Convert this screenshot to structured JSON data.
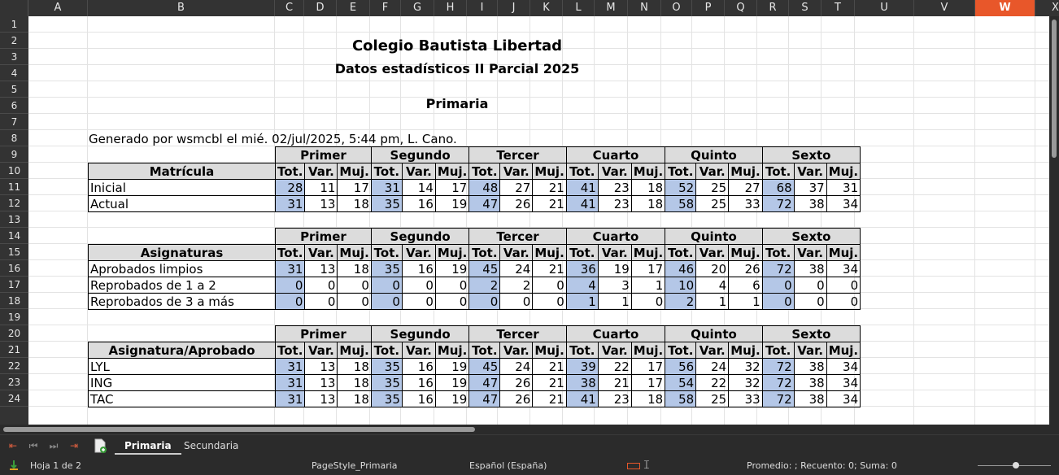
{
  "columns": [
    "A",
    "B",
    "C",
    "D",
    "E",
    "F",
    "G",
    "H",
    "I",
    "J",
    "K",
    "L",
    "M",
    "N",
    "O",
    "P",
    "Q",
    "R",
    "S",
    "T",
    "U",
    "V",
    "W",
    "X"
  ],
  "selected_column": "W",
  "rows": [
    "1",
    "2",
    "3",
    "4",
    "5",
    "6",
    "7",
    "8",
    "9",
    "10",
    "11",
    "12",
    "13",
    "14",
    "15",
    "16",
    "17",
    "18",
    "19",
    "20",
    "21",
    "22",
    "23",
    "24"
  ],
  "sheet": {
    "title": "Colegio Bautista Libertad",
    "subtitle": "Datos estadísticos II Parcial 2025",
    "section": "Primaria",
    "generated": "Generado por wsmcbl el mié. 02/jul/2025, 5:44 pm, L. Cano.",
    "grades": [
      "Primer",
      "Segundo",
      "Tercer",
      "Cuarto",
      "Quinto",
      "Sexto"
    ],
    "sub_headers": [
      "Tot.",
      "Var.",
      "Muj."
    ],
    "blocks": [
      {
        "label": "Matrícula",
        "rows": [
          {
            "name": "Inicial",
            "values": [
              "28",
              "11",
              "17",
              "31",
              "14",
              "17",
              "48",
              "27",
              "21",
              "41",
              "23",
              "18",
              "52",
              "25",
              "27",
              "68",
              "37",
              "31"
            ]
          },
          {
            "name": "Actual",
            "values": [
              "31",
              "13",
              "18",
              "35",
              "16",
              "19",
              "47",
              "26",
              "21",
              "41",
              "23",
              "18",
              "58",
              "25",
              "33",
              "72",
              "38",
              "34"
            ]
          }
        ]
      },
      {
        "label": "Asignaturas",
        "rows": [
          {
            "name": "Aprobados limpios",
            "values": [
              "31",
              "13",
              "18",
              "35",
              "16",
              "19",
              "45",
              "24",
              "21",
              "36",
              "19",
              "17",
              "46",
              "20",
              "26",
              "72",
              "38",
              "34"
            ]
          },
          {
            "name": "Reprobados de 1 a 2",
            "values": [
              "0",
              "0",
              "0",
              "0",
              "0",
              "0",
              "2",
              "2",
              "0",
              "4",
              "3",
              "1",
              "10",
              "4",
              "6",
              "0",
              "0",
              "0"
            ]
          },
          {
            "name": "Reprobados de 3 a más",
            "values": [
              "0",
              "0",
              "0",
              "0",
              "0",
              "0",
              "0",
              "0",
              "0",
              "1",
              "1",
              "0",
              "2",
              "1",
              "1",
              "0",
              "0",
              "0"
            ]
          }
        ]
      },
      {
        "label": "Asignatura/Aprobado",
        "rows": [
          {
            "name": "LYL",
            "values": [
              "31",
              "13",
              "18",
              "35",
              "16",
              "19",
              "45",
              "24",
              "21",
              "39",
              "22",
              "17",
              "56",
              "24",
              "32",
              "72",
              "38",
              "34"
            ]
          },
          {
            "name": "ING",
            "values": [
              "31",
              "13",
              "18",
              "35",
              "16",
              "19",
              "47",
              "26",
              "21",
              "38",
              "21",
              "17",
              "54",
              "22",
              "32",
              "72",
              "38",
              "34"
            ]
          },
          {
            "name": "TAC",
            "values": [
              "31",
              "13",
              "18",
              "35",
              "16",
              "19",
              "47",
              "26",
              "21",
              "41",
              "23",
              "18",
              "58",
              "25",
              "33",
              "72",
              "38",
              "34"
            ]
          }
        ]
      }
    ]
  },
  "tabs": {
    "items": [
      "Primaria",
      "Secundaria"
    ],
    "active": "Primaria"
  },
  "status": {
    "page": "Hoja 1 de 2",
    "page_style": "PageStyle_Primaria",
    "language": "Español (España)",
    "summary": "Promedio: ; Recuento: 0; Suma: 0"
  },
  "colors": {
    "header_bg": "#dcdcdc",
    "total_bg": "#b4c7e7",
    "selected_column": "#e8572a"
  }
}
